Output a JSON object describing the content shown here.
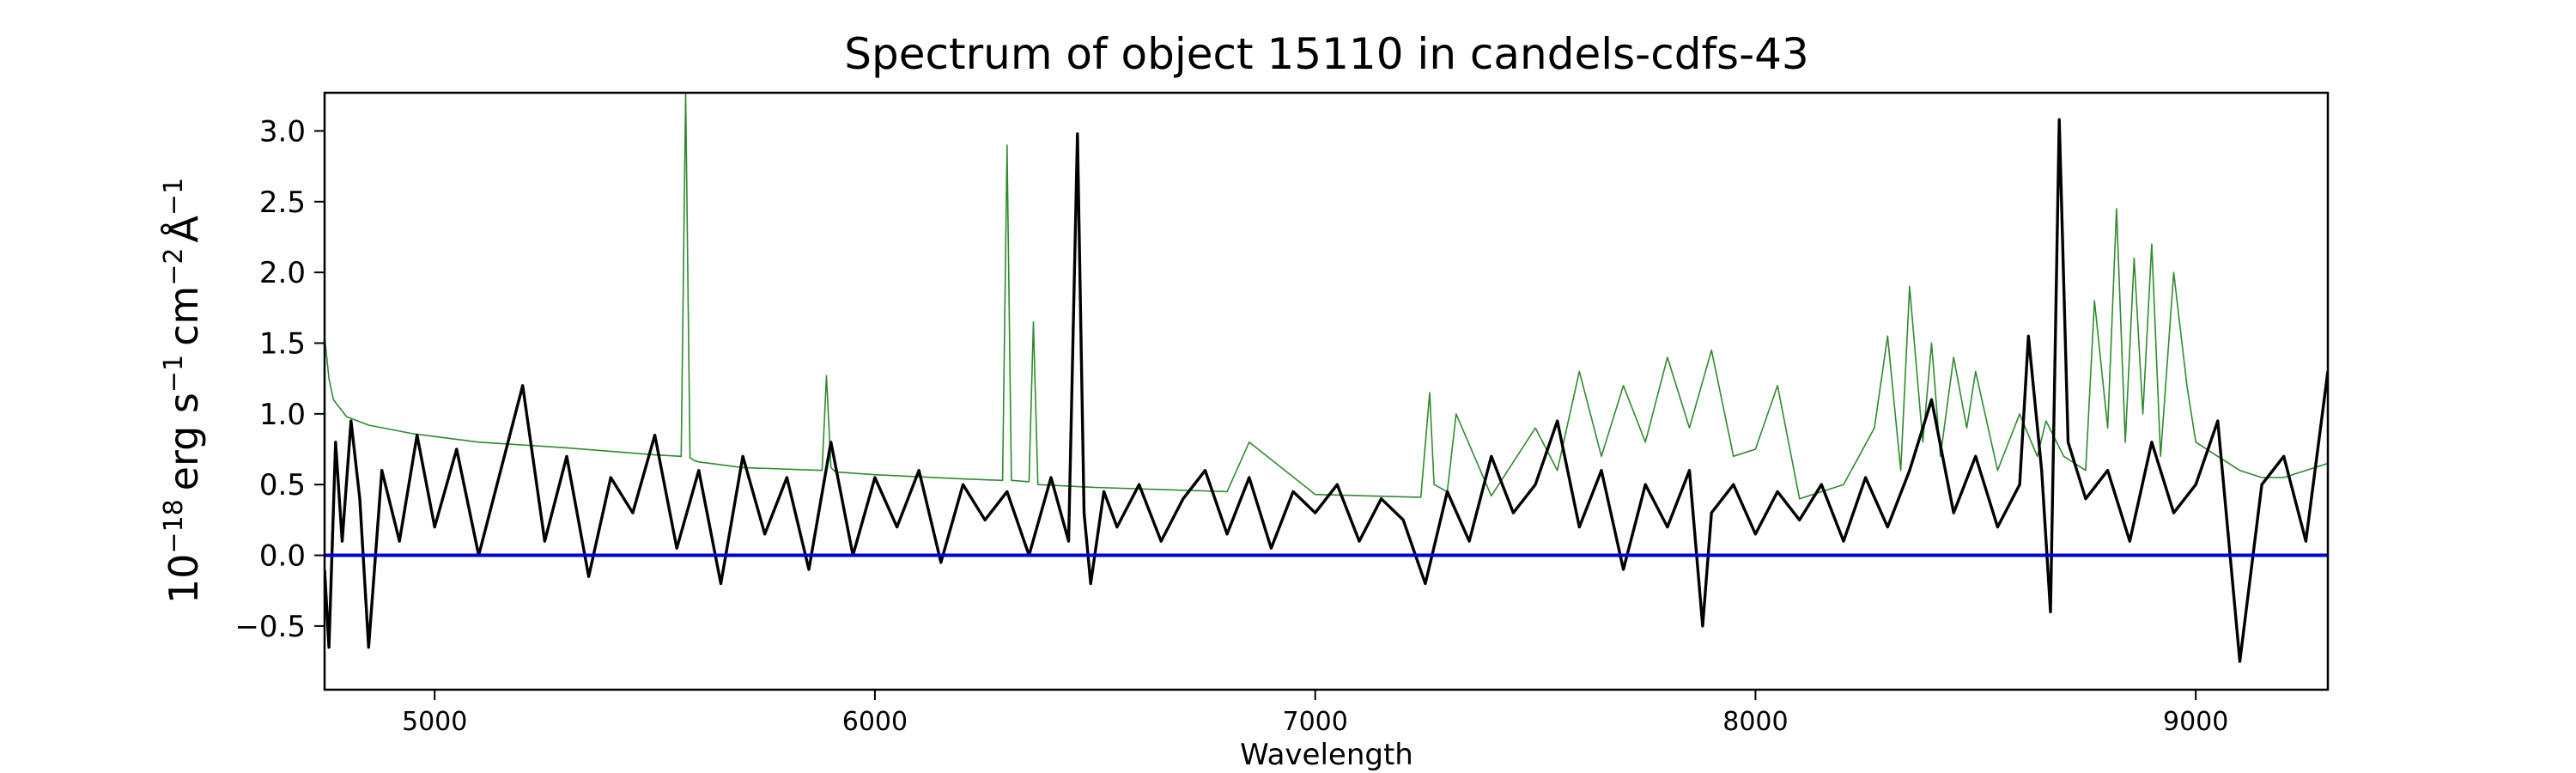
{
  "chart_data": {
    "type": "line",
    "title": "Spectrum of object 15110 in candels-cdfs-43",
    "xlabel": "Wavelength",
    "ylabel": {
      "base": "10",
      "exp": "−18",
      "unit_erg": "erg s",
      "exp_s": "−1",
      "unit_cm": "cm",
      "exp_cm": "−2",
      "unit_ang": "Å",
      "exp_ang": "−1"
    },
    "xlim": [
      4750,
      9300
    ],
    "ylim": [
      -0.95,
      3.27
    ],
    "xticks": [
      5000,
      6000,
      7000,
      8000,
      9000
    ],
    "xtick_labels": [
      "5000",
      "6000",
      "7000",
      "8000",
      "9000"
    ],
    "yticks": [
      -0.5,
      0.0,
      0.5,
      1.0,
      1.5,
      2.0,
      2.5,
      3.0
    ],
    "ytick_labels": [
      "−0.5",
      "0.0",
      "0.5",
      "1.0",
      "1.5",
      "2.0",
      "2.5",
      "3.0"
    ],
    "grid": false,
    "series": [
      {
        "role": "sky",
        "color": "#2f8a2f",
        "x": [
          4750,
          4760,
          4770,
          4800,
          4850,
          4950,
          5100,
          5300,
          5500,
          5560,
          5570,
          5580,
          5590,
          5600,
          5700,
          5880,
          5890,
          5900,
          5910,
          6000,
          6200,
          6290,
          6300,
          6310,
          6350,
          6360,
          6370,
          6500,
          6800,
          6850,
          7000,
          7240,
          7260,
          7270,
          7300,
          7320,
          7400,
          7500,
          7550,
          7600,
          7650,
          7700,
          7750,
          7800,
          7850,
          7900,
          7950,
          8000,
          8050,
          8100,
          8200,
          8270,
          8300,
          8330,
          8350,
          8380,
          8400,
          8420,
          8450,
          8480,
          8500,
          8550,
          8600,
          8640,
          8660,
          8700,
          8750,
          8770,
          8800,
          8820,
          8840,
          8860,
          8880,
          8900,
          8920,
          8950,
          8980,
          9000,
          9050,
          9100,
          9150,
          9200,
          9250,
          9300
        ],
        "y": [
          1.55,
          1.25,
          1.1,
          0.98,
          0.92,
          0.86,
          0.8,
          0.76,
          0.71,
          0.7,
          3.27,
          0.69,
          0.67,
          0.66,
          0.62,
          0.6,
          1.27,
          0.62,
          0.59,
          0.57,
          0.54,
          0.53,
          2.9,
          0.53,
          0.52,
          1.65,
          0.5,
          0.48,
          0.45,
          0.8,
          0.43,
          0.41,
          1.15,
          0.5,
          0.45,
          1.0,
          0.42,
          0.9,
          0.6,
          1.3,
          0.7,
          1.2,
          0.8,
          1.4,
          0.9,
          1.45,
          0.7,
          0.75,
          1.2,
          0.4,
          0.5,
          0.9,
          1.55,
          0.6,
          1.9,
          0.8,
          1.5,
          0.7,
          1.4,
          0.9,
          1.3,
          0.6,
          1.0,
          0.7,
          0.95,
          0.7,
          0.6,
          1.8,
          0.9,
          2.45,
          0.8,
          2.1,
          1.0,
          2.2,
          0.7,
          2.0,
          1.2,
          0.8,
          0.7,
          0.6,
          0.55,
          0.55,
          0.6,
          0.65
        ]
      },
      {
        "role": "flux",
        "color": "#000000",
        "x": [
          4750,
          4760,
          4775,
          4790,
          4810,
          4830,
          4850,
          4880,
          4920,
          4960,
          5000,
          5050,
          5100,
          5150,
          5200,
          5250,
          5300,
          5350,
          5400,
          5450,
          5500,
          5550,
          5600,
          5650,
          5700,
          5750,
          5800,
          5850,
          5900,
          5950,
          6000,
          6050,
          6100,
          6150,
          6200,
          6250,
          6300,
          6350,
          6400,
          6440,
          6460,
          6475,
          6490,
          6520,
          6550,
          6600,
          6650,
          6700,
          6750,
          6800,
          6850,
          6900,
          6950,
          7000,
          7050,
          7100,
          7150,
          7200,
          7250,
          7300,
          7350,
          7400,
          7450,
          7500,
          7550,
          7600,
          7650,
          7700,
          7750,
          7800,
          7850,
          7880,
          7900,
          7950,
          8000,
          8050,
          8100,
          8150,
          8200,
          8250,
          8300,
          8350,
          8400,
          8450,
          8500,
          8550,
          8600,
          8620,
          8650,
          8670,
          8690,
          8710,
          8750,
          8800,
          8850,
          8900,
          8950,
          9000,
          9050,
          9100,
          9150,
          9200,
          9250,
          9300
        ],
        "y": [
          -0.1,
          -0.65,
          0.8,
          0.1,
          0.95,
          0.4,
          -0.65,
          0.6,
          0.1,
          0.85,
          0.2,
          0.75,
          0.0,
          0.6,
          1.2,
          0.1,
          0.7,
          -0.15,
          0.55,
          0.3,
          0.85,
          0.05,
          0.6,
          -0.2,
          0.7,
          0.15,
          0.55,
          -0.1,
          0.8,
          0.0,
          0.55,
          0.2,
          0.6,
          -0.05,
          0.5,
          0.25,
          0.45,
          0.0,
          0.55,
          0.1,
          2.98,
          0.3,
          -0.2,
          0.45,
          0.2,
          0.5,
          0.1,
          0.4,
          0.6,
          0.15,
          0.55,
          0.05,
          0.45,
          0.3,
          0.5,
          0.1,
          0.4,
          0.25,
          -0.2,
          0.45,
          0.1,
          0.7,
          0.3,
          0.5,
          0.95,
          0.2,
          0.6,
          -0.1,
          0.5,
          0.2,
          0.6,
          -0.5,
          0.3,
          0.5,
          0.15,
          0.45,
          0.25,
          0.5,
          0.1,
          0.55,
          0.2,
          0.6,
          1.1,
          0.3,
          0.7,
          0.2,
          0.5,
          1.55,
          0.6,
          -0.4,
          3.08,
          0.8,
          0.4,
          0.6,
          0.1,
          0.8,
          0.3,
          0.5,
          0.95,
          -0.75,
          0.5,
          0.7,
          0.1,
          1.3
        ]
      },
      {
        "role": "zero",
        "color": "#0000dd",
        "x": [
          4750,
          9300
        ],
        "y": [
          0.0,
          0.0
        ]
      }
    ]
  }
}
